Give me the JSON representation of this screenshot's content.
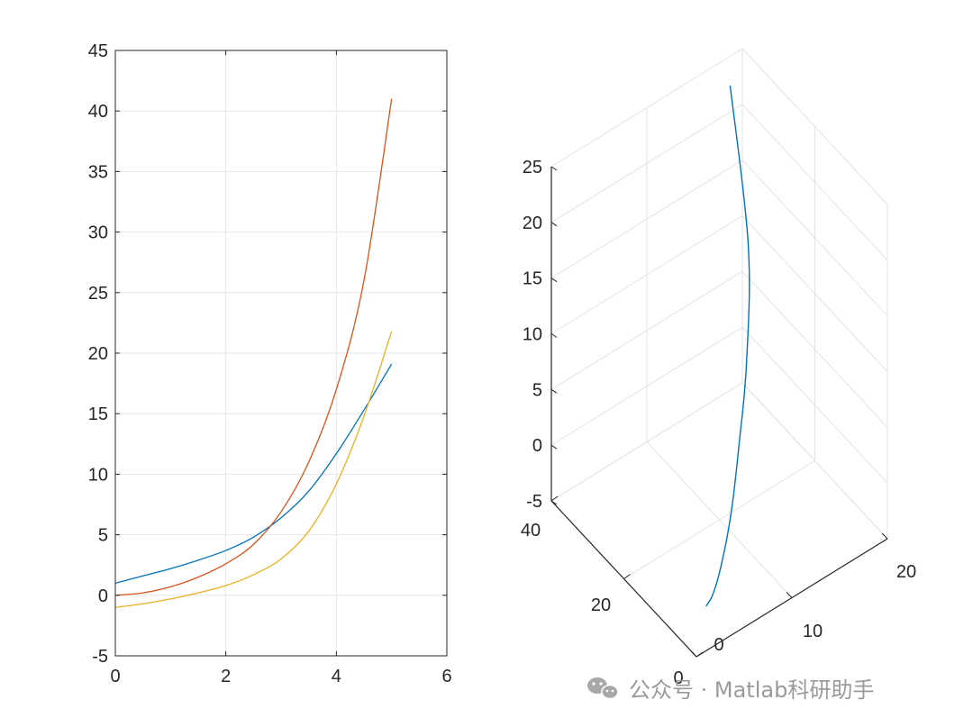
{
  "chart_data": [
    {
      "type": "line",
      "title": "",
      "xlabel": "",
      "ylabel": "",
      "xlim": [
        0,
        6
      ],
      "ylim": [
        -5,
        45
      ],
      "xticks": [
        0,
        2,
        4,
        6
      ],
      "yticks": [
        -5,
        0,
        5,
        10,
        15,
        20,
        25,
        30,
        35,
        40,
        45
      ],
      "grid": true,
      "x": [
        0,
        0.5,
        1,
        1.5,
        2,
        2.5,
        3,
        3.5,
        4,
        4.5,
        5
      ],
      "series": [
        {
          "color": "#0072BD",
          "values": [
            1.0,
            1.6,
            2.2,
            2.9,
            3.7,
            4.8,
            6.4,
            8.6,
            11.7,
            15.3,
            19.1
          ]
        },
        {
          "color": "#D95319",
          "values": [
            0.0,
            0.2,
            0.7,
            1.5,
            2.6,
            4.2,
            6.9,
            11.0,
            17.0,
            26.0,
            41.0
          ]
        },
        {
          "color": "#EDB120",
          "values": [
            -1.0,
            -0.7,
            -0.3,
            0.2,
            0.8,
            1.7,
            3.0,
            5.3,
            9.2,
            14.8,
            21.8
          ]
        }
      ]
    },
    {
      "type": "line3d",
      "title": "",
      "grid": true,
      "xlim": [
        0,
        20
      ],
      "ylim": [
        0,
        40
      ],
      "zlim": [
        -5,
        25
      ],
      "xtick_labels": [
        "0",
        "10",
        "20"
      ],
      "ytick_labels": [
        "0",
        "20",
        "40"
      ],
      "ztick_labels": [
        "-5",
        "0",
        "5",
        "10",
        "15",
        "20",
        "25"
      ],
      "series": [
        {
          "color": "#0072BD",
          "x": [
            1.0,
            1.6,
            2.2,
            2.9,
            3.7,
            4.8,
            6.4,
            8.6,
            11.7,
            15.3,
            19.1
          ],
          "y": [
            0.0,
            0.2,
            0.7,
            1.5,
            2.6,
            4.2,
            6.9,
            11.0,
            17.0,
            26.0,
            41.0
          ],
          "z": [
            -1.0,
            -0.7,
            -0.3,
            0.2,
            0.8,
            1.7,
            3.0,
            5.3,
            9.2,
            14.8,
            21.8
          ]
        }
      ]
    }
  ],
  "watermark": {
    "text": "公众号 · Matlab科研助手",
    "icon": "wechat-icon"
  }
}
